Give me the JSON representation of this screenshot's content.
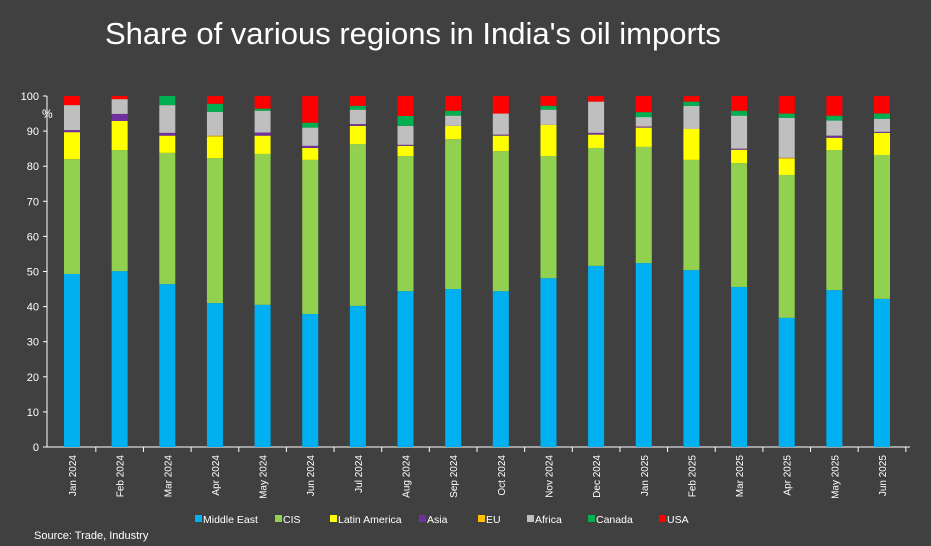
{
  "chart_data": {
    "type": "bar",
    "stacked": true,
    "title": "Share of various regions in India's oil imports",
    "ylabel": "%",
    "xlabel": "",
    "ylim": [
      0,
      100
    ],
    "yticks": [
      0,
      10,
      20,
      30,
      40,
      50,
      60,
      70,
      80,
      90,
      100
    ],
    "grid": false,
    "legend_position": "bottom",
    "source": "Source: Trade, Industry",
    "categories": [
      "Jan 2024",
      "Feb 2024",
      "Mar 2024",
      "Apr 2024",
      "May 2024",
      "Jun 2024",
      "Jul 2024",
      "Aug 2024",
      "Sep 2024",
      "Oct 2024",
      "Nov 2024",
      "Dec 2024",
      "Jan 2025",
      "Feb 2025",
      "Mar 2025",
      "Apr 2025",
      "May 2025",
      "Jun 2025"
    ],
    "series": [
      {
        "name": "Middle East",
        "color": "#00B0F0",
        "values": [
          49.3,
          50.1,
          46.4,
          41.0,
          40.5,
          37.9,
          40.2,
          44.4,
          45.0,
          44.4,
          48.1,
          51.6,
          52.4,
          50.4,
          45.6,
          36.8,
          44.7,
          42.2
        ]
      },
      {
        "name": "CIS",
        "color": "#92D050",
        "values": [
          32.7,
          34.5,
          37.4,
          41.3,
          43.0,
          43.9,
          46.1,
          38.5,
          42.7,
          39.9,
          34.8,
          33.6,
          33.1,
          31.4,
          35.3,
          40.7,
          39.9,
          41.0
        ]
      },
      {
        "name": "Latin America",
        "color": "#FFFF00",
        "values": [
          7.7,
          8.3,
          4.9,
          6.1,
          5.2,
          3.4,
          5.2,
          2.9,
          3.8,
          4.4,
          8.9,
          3.8,
          5.5,
          8.8,
          3.8,
          4.6,
          3.5,
          6.3
        ]
      },
      {
        "name": "Asia",
        "color": "#7030A0",
        "values": [
          0.6,
          2.0,
          0.8,
          0,
          0.9,
          0.6,
          0.5,
          0.3,
          0,
          0.3,
          0,
          0.5,
          0.3,
          0,
          0.3,
          0,
          0.6,
          0.3
        ]
      },
      {
        "name": "EU",
        "color": "#FFC000",
        "values": [
          0,
          0,
          0,
          0.3,
          0,
          0,
          0,
          0,
          0,
          0,
          0,
          0,
          0,
          0,
          0,
          0.3,
          0,
          0
        ]
      },
      {
        "name": "Africa",
        "color": "#BFBFBF",
        "values": [
          7.1,
          4.2,
          7.9,
          6.8,
          6.2,
          5.2,
          4.1,
          5.4,
          2.9,
          6.0,
          4.3,
          8.9,
          2.7,
          6.6,
          9.4,
          11.4,
          4.3,
          3.7
        ]
      },
      {
        "name": "Canada",
        "color": "#00B050",
        "values": [
          0,
          0,
          2.6,
          2.3,
          0.6,
          1.4,
          1.1,
          2.8,
          1.4,
          0,
          1.1,
          0,
          1.4,
          1.2,
          1.4,
          1.2,
          1.4,
          1.5
        ]
      },
      {
        "name": "USA",
        "color": "#FF0000",
        "values": [
          2.6,
          0.9,
          0,
          2.2,
          3.6,
          7.6,
          2.8,
          5.7,
          4.2,
          5.0,
          2.8,
          1.6,
          4.6,
          1.6,
          4.2,
          5.0,
          5.6,
          5.0
        ]
      }
    ]
  }
}
